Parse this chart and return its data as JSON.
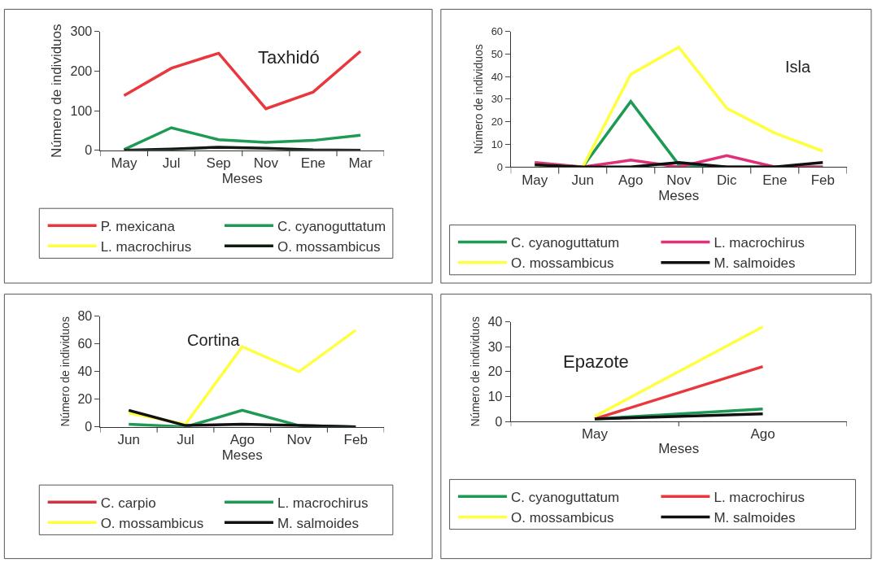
{
  "chart_data": [
    {
      "type": "line",
      "title": "Taxhidó",
      "xlabel": "Meses",
      "ylabel": "Número de individuos",
      "categories": [
        "May",
        "Jul",
        "Sep",
        "Nov",
        "Ene",
        "Mar"
      ],
      "ylim": [
        0,
        300
      ],
      "yticks": [
        0,
        100,
        200,
        300
      ],
      "legend": "bottom",
      "marker": "none",
      "line_style": "solid",
      "series": [
        {
          "name": "P. mexicana",
          "color": "#e8383d",
          "values": [
            138,
            207,
            245,
            105,
            147,
            250
          ]
        },
        {
          "name": "C. cyanoguttatum",
          "color": "#1e9a55",
          "values": [
            2,
            57,
            27,
            20,
            25,
            38
          ]
        },
        {
          "name": "L. macrochirus",
          "color": "#ffff40",
          "values": [
            null,
            null,
            null,
            null,
            null,
            null
          ]
        },
        {
          "name": "O. mossambicus",
          "color": "#101a10",
          "values": [
            0,
            3,
            8,
            5,
            1,
            0
          ]
        }
      ]
    },
    {
      "type": "line",
      "title": "Isla",
      "xlabel": "Meses",
      "ylabel": "Número de individuos",
      "categories": [
        "May",
        "Jun",
        "Ago",
        "Nov",
        "Dic",
        "Ene",
        "Feb"
      ],
      "ylim": [
        0,
        60
      ],
      "yticks": [
        0,
        10,
        20,
        30,
        40,
        50,
        60
      ],
      "legend": "bottom",
      "marker": "none",
      "line_style": "solid",
      "series": [
        {
          "name": "C. cyanoguttatum",
          "color": "#1e9a55",
          "values": [
            1,
            0,
            29,
            1,
            0,
            0,
            0
          ]
        },
        {
          "name": "L. macrochirus",
          "color": "#e0307a",
          "values": [
            2,
            0,
            3,
            0,
            5,
            0,
            0
          ]
        },
        {
          "name": "O. mossambicus",
          "color": "#ffff40",
          "values": [
            1,
            0,
            41,
            53,
            26,
            15,
            7
          ]
        },
        {
          "name": "M. salmoides",
          "color": "#101010",
          "values": [
            1,
            0,
            0,
            2,
            0,
            0,
            2
          ]
        }
      ]
    },
    {
      "type": "line",
      "title": "Cortina",
      "xlabel": "Meses",
      "ylabel": "Número de individuos",
      "categories": [
        "Jun",
        "Jul",
        "Ago",
        "Nov",
        "Feb"
      ],
      "ylim": [
        0,
        80
      ],
      "yticks": [
        0,
        20,
        40,
        60,
        80
      ],
      "legend": "bottom",
      "marker": "none",
      "line_style": "solid",
      "series": [
        {
          "name": "C. carpio",
          "color": "#d83040",
          "values": [
            null,
            null,
            null,
            null,
            null
          ]
        },
        {
          "name": "L. macrochirus",
          "color": "#1e9a55",
          "values": [
            2,
            0,
            12,
            1,
            0
          ]
        },
        {
          "name": "O. mossambicus",
          "color": "#ffff40",
          "values": [
            10,
            2,
            58,
            40,
            70
          ]
        },
        {
          "name": "M. salmoides",
          "color": "#101010",
          "values": [
            12,
            1,
            2,
            1,
            0
          ]
        }
      ]
    },
    {
      "type": "line",
      "title": "Epazote",
      "xlabel": "Meses",
      "ylabel": "Número de individuos",
      "categories": [
        "May",
        "Ago"
      ],
      "ylim": [
        0,
        40
      ],
      "yticks": [
        0,
        10,
        20,
        30,
        40
      ],
      "legend": "bottom",
      "marker": "none",
      "line_style": "solid",
      "series": [
        {
          "name": "C. cyanoguttatum",
          "color": "#1e9a55",
          "values": [
            1,
            5
          ]
        },
        {
          "name": "L. macrochirus",
          "color": "#e8383d",
          "values": [
            1,
            22
          ]
        },
        {
          "name": "O. mossambicus",
          "color": "#ffff40",
          "values": [
            2,
            38
          ]
        },
        {
          "name": "M. salmoides",
          "color": "#101010",
          "values": [
            1,
            3
          ]
        }
      ]
    }
  ]
}
